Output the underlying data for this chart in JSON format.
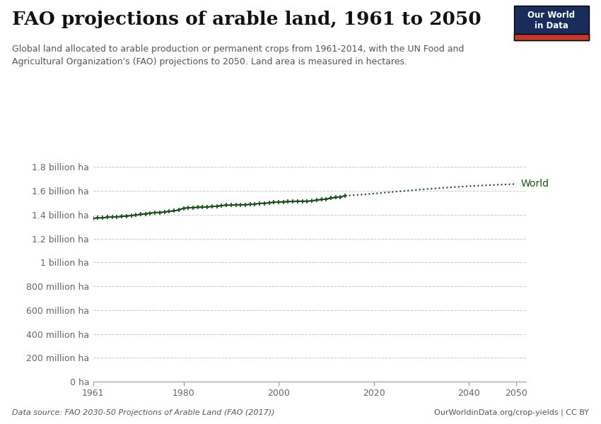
{
  "title": "FAO projections of arable land, 1961 to 2050",
  "subtitle": "Global land allocated to arable production or permanent crops from 1961-2014, with the UN Food and\nAgricultural Organization's (FAO) projections to 2050. Land area is measured in hectares.",
  "data_source": "Data source: FAO 2030-50 Projections of Arable Land (FAO (2017))",
  "url": "OurWorldinData.org/crop-yields | CC BY",
  "line_color": "#1a4d1a",
  "bg_color": "#ffffff",
  "grid_color": "#cccccc",
  "ytick_labels": [
    "0 ha",
    "200 million ha",
    "400 million ha",
    "600 million ha",
    "800 million ha",
    "1 billion ha",
    "1.2 billion ha",
    "1.4 billion ha",
    "1.6 billion ha",
    "1.8 billion ha"
  ],
  "ytick_values": [
    0,
    200000000,
    400000000,
    600000000,
    800000000,
    1000000000,
    1200000000,
    1400000000,
    1600000000,
    1800000000
  ],
  "xlim": [
    1961,
    2052
  ],
  "ylim": [
    0,
    1850000000
  ],
  "xticks": [
    1961,
    1980,
    2000,
    2020,
    2040,
    2050
  ],
  "historical_years": [
    1961,
    1962,
    1963,
    1964,
    1965,
    1966,
    1967,
    1968,
    1969,
    1970,
    1971,
    1972,
    1973,
    1974,
    1975,
    1976,
    1977,
    1978,
    1979,
    1980,
    1981,
    1982,
    1983,
    1984,
    1985,
    1986,
    1987,
    1988,
    1989,
    1990,
    1991,
    1992,
    1993,
    1994,
    1995,
    1996,
    1997,
    1998,
    1999,
    2000,
    2001,
    2002,
    2003,
    2004,
    2005,
    2006,
    2007,
    2008,
    2009,
    2010,
    2011,
    2012,
    2013,
    2014
  ],
  "historical_values": [
    1368000000,
    1374000000,
    1374000000,
    1379000000,
    1381000000,
    1382000000,
    1385000000,
    1390000000,
    1393000000,
    1397000000,
    1403000000,
    1408000000,
    1414000000,
    1418000000,
    1420000000,
    1423000000,
    1428000000,
    1432000000,
    1440000000,
    1455000000,
    1458000000,
    1460000000,
    1462000000,
    1464000000,
    1466000000,
    1468000000,
    1472000000,
    1477000000,
    1480000000,
    1481000000,
    1483000000,
    1484000000,
    1485000000,
    1486000000,
    1490000000,
    1495000000,
    1497000000,
    1500000000,
    1504000000,
    1507000000,
    1508000000,
    1510000000,
    1512000000,
    1514000000,
    1513000000,
    1514000000,
    1516000000,
    1523000000,
    1527000000,
    1532000000,
    1539000000,
    1545000000,
    1549000000,
    1560000000
  ],
  "projection_years": [
    2014,
    2015,
    2016,
    2017,
    2018,
    2019,
    2020,
    2025,
    2030,
    2035,
    2040,
    2045,
    2050
  ],
  "projection_values": [
    1560000000,
    1562000000,
    1565000000,
    1568000000,
    1571000000,
    1574000000,
    1578000000,
    1595000000,
    1612000000,
    1627000000,
    1640000000,
    1650000000,
    1658000000
  ],
  "world_label": "World",
  "owid_logo_bg": "#1a2d5a",
  "owid_logo_red": "#c0392b"
}
